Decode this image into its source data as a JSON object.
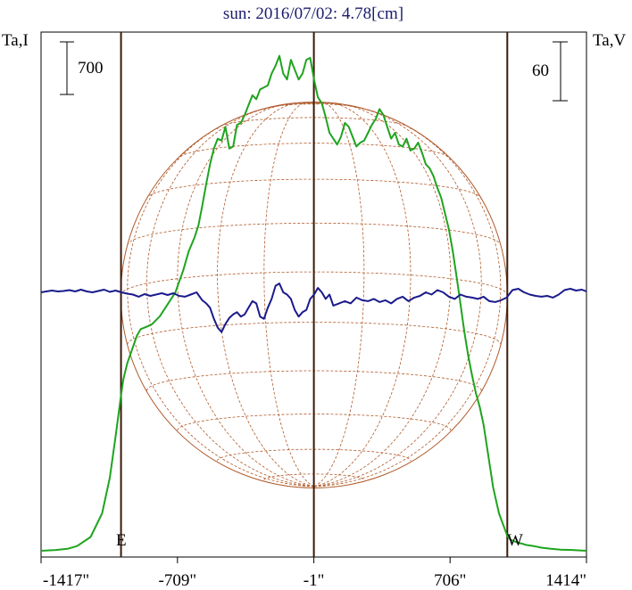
{
  "chart_data": {
    "type": "line",
    "title": "sun: 2016/07/02: 4.78[cm]",
    "title_color": "#1c1c6e",
    "y_left_label": "Ta,I",
    "y_right_label": "Ta,V",
    "scale_left": "700",
    "scale_right": "60",
    "x_ticks": [
      "-1417\"",
      "-709\"",
      "-1\"",
      "706\"",
      "1414\""
    ],
    "x_tick_values": [
      -1417,
      -709,
      -1,
      706,
      1414
    ],
    "xlim": [
      -1417,
      1414
    ],
    "limb_markers": [
      {
        "label": "E",
        "x": -1002
      },
      {
        "label": "W",
        "x": 1003
      }
    ],
    "center_line_x": -1,
    "solar_disk": {
      "radius_arcsec": 1003,
      "color": "#b05a2a",
      "grid": true
    },
    "series": [
      {
        "name": "I",
        "color": "#1fa41f",
        "units_per_scale_bar": 700,
        "y_unit": "scale-bar",
        "x": [
          -1417,
          -1340,
          -1280,
          -1230,
          -1160,
          -1100,
          -1060,
          -1030,
          -1002,
          -990,
          -970,
          -945,
          -920,
          -900,
          -870,
          -840,
          -800,
          -760,
          -720,
          -680,
          -650,
          -620,
          -600,
          -580,
          -560,
          -540,
          -520,
          -500,
          -480,
          -460,
          -440,
          -420,
          -400,
          -380,
          -360,
          -340,
          -320,
          -300,
          -280,
          -260,
          -240,
          -220,
          -200,
          -180,
          -160,
          -140,
          -120,
          -100,
          -80,
          -60,
          -40,
          -20,
          0,
          20,
          40,
          60,
          80,
          100,
          120,
          140,
          160,
          180,
          200,
          220,
          240,
          260,
          280,
          300,
          320,
          340,
          360,
          380,
          400,
          420,
          440,
          460,
          480,
          500,
          520,
          540,
          560,
          580,
          600,
          620,
          640,
          660,
          680,
          700,
          720,
          740,
          760,
          780,
          800,
          820,
          840,
          860,
          880,
          900,
          930,
          960,
          990,
          1003,
          1020,
          1040,
          1060,
          1080,
          1100,
          1140,
          1180,
          1230,
          1280,
          1340,
          1414
        ],
        "y": [
          0.0,
          0.02,
          0.05,
          0.12,
          0.35,
          0.95,
          1.85,
          2.9,
          3.95,
          4.35,
          4.75,
          5.1,
          5.45,
          5.62,
          5.68,
          5.75,
          5.95,
          6.25,
          6.55,
          7.1,
          7.6,
          7.95,
          8.25,
          8.75,
          9.3,
          9.8,
          10.2,
          10.45,
          10.4,
          10.75,
          10.2,
          10.25,
          10.8,
          10.85,
          11.05,
          11.3,
          11.55,
          11.45,
          11.7,
          11.75,
          11.8,
          12.1,
          12.3,
          12.55,
          12.1,
          11.95,
          12.45,
          12.2,
          11.95,
          12.1,
          12.45,
          12.5,
          11.95,
          11.5,
          11.35,
          11.0,
          10.6,
          10.45,
          10.3,
          10.5,
          10.85,
          10.75,
          10.5,
          10.25,
          10.35,
          10.4,
          10.6,
          10.8,
          10.95,
          11.2,
          11.05,
          10.75,
          10.45,
          10.6,
          10.3,
          10.25,
          10.45,
          10.15,
          10.2,
          10.35,
          10.1,
          9.8,
          9.7,
          9.5,
          9.2,
          8.95,
          8.55,
          8.15,
          7.6,
          6.95,
          6.25,
          5.55,
          4.95,
          4.45,
          4.0,
          3.65,
          3.2,
          2.55,
          1.6,
          0.95,
          0.55,
          0.38,
          0.28,
          0.24,
          0.2,
          0.18,
          0.15,
          0.12,
          0.08,
          0.05,
          0.03,
          0.02,
          0.0
        ]
      },
      {
        "name": "V",
        "color": "#1a1a8c",
        "units_per_scale_bar": 60,
        "y_unit": "scale-bar",
        "x": [
          -1417,
          -1390,
          -1360,
          -1330,
          -1300,
          -1270,
          -1240,
          -1210,
          -1180,
          -1150,
          -1120,
          -1090,
          -1060,
          -1030,
          -1000,
          -970,
          -940,
          -910,
          -880,
          -850,
          -820,
          -790,
          -760,
          -730,
          -700,
          -670,
          -640,
          -610,
          -580,
          -560,
          -540,
          -520,
          -500,
          -480,
          -460,
          -440,
          -420,
          -400,
          -380,
          -360,
          -340,
          -320,
          -300,
          -280,
          -260,
          -240,
          -220,
          -200,
          -180,
          -160,
          -140,
          -120,
          -100,
          -80,
          -60,
          -40,
          -20,
          0,
          20,
          40,
          60,
          80,
          100,
          130,
          160,
          190,
          220,
          250,
          280,
          310,
          340,
          370,
          400,
          430,
          460,
          490,
          520,
          550,
          580,
          610,
          640,
          670,
          700,
          730,
          760,
          790,
          820,
          850,
          880,
          910,
          940,
          970,
          1000,
          1030,
          1060,
          1090,
          1120,
          1150,
          1180,
          1210,
          1240,
          1270,
          1300,
          1330,
          1360,
          1390,
          1414
        ],
        "y": [
          0.0,
          0.02,
          0.04,
          0.02,
          0.03,
          0.05,
          0.02,
          0.06,
          0.02,
          0.0,
          0.03,
          0.06,
          0.01,
          0.04,
          0.0,
          -0.03,
          -0.05,
          -0.1,
          -0.04,
          -0.08,
          -0.05,
          -0.02,
          -0.06,
          -0.02,
          -0.08,
          -0.1,
          -0.05,
          0.0,
          -0.18,
          -0.25,
          -0.35,
          -0.6,
          -0.8,
          -0.9,
          -0.72,
          -0.58,
          -0.5,
          -0.45,
          -0.55,
          -0.5,
          -0.35,
          -0.2,
          -0.25,
          -0.55,
          -0.6,
          -0.35,
          -0.15,
          0.15,
          0.2,
          0.0,
          -0.05,
          -0.15,
          -0.4,
          -0.55,
          -0.45,
          -0.4,
          -0.15,
          -0.05,
          0.1,
          0.0,
          -0.15,
          -0.05,
          -0.3,
          -0.25,
          -0.2,
          -0.25,
          -0.12,
          -0.18,
          -0.2,
          -0.15,
          -0.22,
          -0.18,
          -0.25,
          -0.15,
          -0.1,
          -0.2,
          -0.12,
          -0.08,
          0.0,
          -0.05,
          0.05,
          0.0,
          -0.1,
          -0.15,
          -0.05,
          -0.1,
          -0.12,
          -0.15,
          -0.1,
          -0.2,
          -0.22,
          -0.18,
          -0.12,
          0.05,
          0.08,
          0.0,
          -0.05,
          -0.08,
          -0.1,
          -0.08,
          -0.12,
          -0.05,
          0.05,
          0.08,
          0.04,
          0.06,
          0.02
        ]
      }
    ]
  }
}
